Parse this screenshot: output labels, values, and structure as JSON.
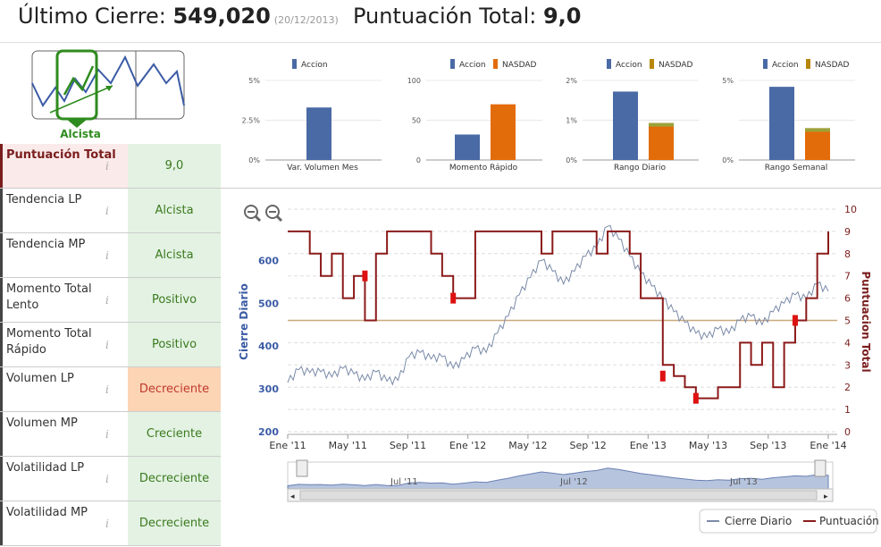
{
  "header": {
    "close_label": "Último Cierre:",
    "close_value": "549,020",
    "close_date": "(20/12/2013)",
    "score_label": "Puntuación Total:",
    "score_value": "9,0"
  },
  "trend": {
    "label": "Alcista",
    "colors": {
      "green": "#2e8b1e",
      "blue": "#3b5ba5"
    }
  },
  "scores": [
    {
      "label": "Puntuación Total",
      "value": "9,0",
      "status": "score"
    },
    {
      "label": "Tendencia LP",
      "value": "Alcista",
      "status": "good"
    },
    {
      "label": "Tendencia MP",
      "value": "Alcista",
      "status": "good"
    },
    {
      "label": "Momento Total Lento",
      "value": "Positivo",
      "status": "good"
    },
    {
      "label": "Momento Total Rápido",
      "value": "Positivo",
      "status": "good"
    },
    {
      "label": "Volumen LP",
      "value": "Decreciente",
      "status": "warn"
    },
    {
      "label": "Volumen MP",
      "value": "Creciente",
      "status": "good"
    },
    {
      "label": "Volatilidad LP",
      "value": "Decreciente",
      "status": "good"
    },
    {
      "label": "Volatilidad MP",
      "value": "Decreciente",
      "status": "good"
    }
  ],
  "info_icon": "i",
  "colors": {
    "accion": "#4a6aa5",
    "nasdaq": "#e36c0a",
    "nasdaq_alt": "#b8860b",
    "close": "#7a8aa8",
    "score": "#8b1a1a",
    "ref": "#c9a87e"
  },
  "chart_data": [
    {
      "type": "bar",
      "title": "Var. Volumen Mes",
      "legend": [
        "Accion"
      ],
      "yticks": [
        "5%",
        "2.5%",
        "0%"
      ],
      "ylim": [
        0,
        5
      ],
      "values": [
        3.3
      ]
    },
    {
      "type": "bar",
      "title": "Momento Rápido",
      "legend": [
        "Accion",
        "NASDAD"
      ],
      "yticks": [
        "100",
        "50",
        "0"
      ],
      "ylim": [
        0,
        100
      ],
      "values": [
        32,
        70
      ]
    },
    {
      "type": "bar",
      "title": "Rango Diario",
      "legend": [
        "Accion",
        "NASDAD"
      ],
      "yticks": [
        "2%",
        "1%",
        "0%"
      ],
      "ylim": [
        0,
        2
      ],
      "values": [
        1.72,
        0.93
      ]
    },
    {
      "type": "bar",
      "title": "Rango Semanal",
      "legend": [
        "Accion",
        "NASDAD"
      ],
      "yticks": [
        "5%",
        "",
        "0%"
      ],
      "ylim": [
        0,
        5
      ],
      "values": [
        4.6,
        2.0
      ]
    },
    {
      "type": "line",
      "ylabel": "Cierre Diario",
      "y2label": "Puntuacion Total",
      "ylim": [
        200,
        720
      ],
      "yticks": [
        200,
        300,
        400,
        500,
        600
      ],
      "y2lim": [
        0,
        10
      ],
      "y2ticks": [
        0,
        1,
        2,
        3,
        4,
        5,
        6,
        7,
        8,
        9,
        10
      ],
      "xticks": [
        "Ene '11",
        "May '11",
        "Sep '11",
        "Ene '12",
        "May '12",
        "Sep '12",
        "Ene '13",
        "May '13",
        "Sep '13",
        "Ene '14"
      ],
      "reference_score": 5,
      "series": [
        {
          "name": "Cierre Diario",
          "points": [
            [
              0,
              315
            ],
            [
              1,
              345
            ],
            [
              2,
              338
            ],
            [
              3,
              340
            ],
            [
              4,
              328
            ],
            [
              5,
              348
            ],
            [
              6,
              335
            ],
            [
              7,
              320
            ],
            [
              8,
              340
            ],
            [
              9,
              318
            ],
            [
              10,
              320
            ],
            [
              11,
              375
            ],
            [
              12,
              385
            ],
            [
              13,
              370
            ],
            [
              14,
              375
            ],
            [
              15,
              348
            ],
            [
              16,
              370
            ],
            [
              17,
              395
            ],
            [
              18,
              385
            ],
            [
              19,
              430
            ],
            [
              20,
              470
            ],
            [
              21,
              520
            ],
            [
              22,
              560
            ],
            [
              23,
              600
            ],
            [
              24,
              575
            ],
            [
              25,
              545
            ],
            [
              26,
              575
            ],
            [
              27,
              610
            ],
            [
              28,
              630
            ],
            [
              29,
              680
            ],
            [
              30,
              650
            ],
            [
              31,
              610
            ],
            [
              32,
              570
            ],
            [
              33,
              540
            ],
            [
              34,
              510
            ],
            [
              35,
              480
            ],
            [
              36,
              455
            ],
            [
              37,
              430
            ],
            [
              38,
              420
            ],
            [
              39,
              440
            ],
            [
              40,
              430
            ],
            [
              41,
              460
            ],
            [
              42,
              470
            ],
            [
              43,
              450
            ],
            [
              44,
              480
            ],
            [
              45,
              500
            ],
            [
              46,
              520
            ],
            [
              47,
              510
            ],
            [
              48,
              545
            ],
            [
              49,
              528
            ]
          ]
        },
        {
          "name": "Puntuación",
          "points": [
            [
              0,
              9
            ],
            [
              2,
              9
            ],
            [
              2,
              8
            ],
            [
              3,
              7
            ],
            [
              4,
              8
            ],
            [
              5,
              6
            ],
            [
              6,
              7
            ],
            [
              7,
              5
            ],
            [
              8,
              8
            ],
            [
              9,
              9
            ],
            [
              12,
              9
            ],
            [
              13,
              8
            ],
            [
              14,
              7
            ],
            [
              15,
              6
            ],
            [
              16,
              6
            ],
            [
              17,
              9
            ],
            [
              21,
              9
            ],
            [
              22,
              9
            ],
            [
              23,
              8
            ],
            [
              24,
              9
            ],
            [
              26,
              9
            ],
            [
              27,
              9
            ],
            [
              28,
              8
            ],
            [
              29,
              9
            ],
            [
              30,
              9
            ],
            [
              31,
              8
            ],
            [
              32,
              6
            ],
            [
              33,
              6
            ],
            [
              34,
              3
            ],
            [
              35,
              2.5
            ],
            [
              36,
              2
            ],
            [
              37,
              1.5
            ],
            [
              38,
              1.5
            ],
            [
              39,
              2
            ],
            [
              40,
              2
            ],
            [
              41,
              4
            ],
            [
              42,
              3
            ],
            [
              43,
              4
            ],
            [
              44,
              2
            ],
            [
              45,
              4
            ],
            [
              46,
              5
            ],
            [
              47,
              6
            ],
            [
              48,
              8
            ],
            [
              49,
              9
            ]
          ]
        }
      ],
      "navigator": {
        "labels": [
          "Jul '11",
          "Jul '12",
          "Jul '13"
        ]
      },
      "legend": [
        "Cierre Diario",
        "Puntuación"
      ]
    }
  ]
}
